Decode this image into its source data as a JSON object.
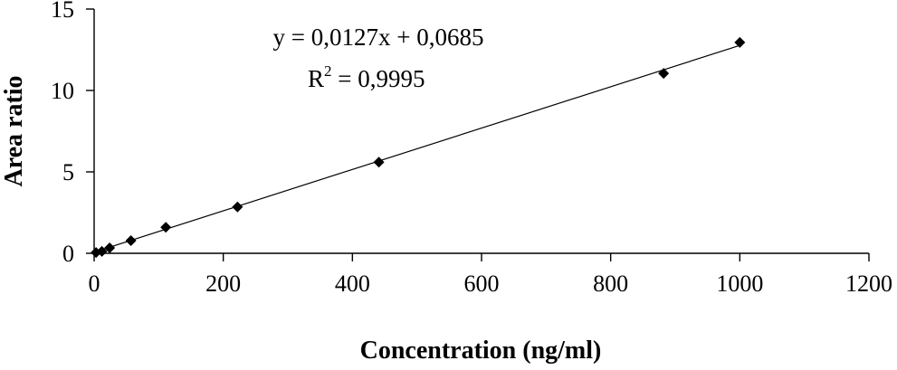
{
  "chart_data": {
    "type": "scatter",
    "xlabel": "Concentration (ng/ml)",
    "ylabel": "Area ratio",
    "xlim": [
      0,
      1200
    ],
    "ylim": [
      0,
      15
    ],
    "x_ticks": [
      0,
      200,
      400,
      600,
      800,
      1000,
      1200
    ],
    "y_ticks": [
      0,
      5,
      10,
      15
    ],
    "grid": false,
    "legend": "none",
    "series": [
      {
        "points": [
          {
            "x": 3,
            "y": 0.05
          },
          {
            "x": 12,
            "y": 0.12
          },
          {
            "x": 24,
            "y": 0.33
          },
          {
            "x": 57,
            "y": 0.78
          },
          {
            "x": 111,
            "y": 1.6
          },
          {
            "x": 222,
            "y": 2.85
          },
          {
            "x": 441,
            "y": 5.6
          },
          {
            "x": 882,
            "y": 11.05
          },
          {
            "x": 1000,
            "y": 12.95
          }
        ]
      }
    ],
    "trendline": {
      "type": "linear",
      "slope": 0.0127,
      "intercept": 0.0685,
      "x_range": [
        0,
        1000
      ]
    },
    "annotations": {
      "equation": "y = 0,0127x + 0,0685",
      "r_squared_prefix": "R",
      "r_squared_exponent": "2",
      "r_squared_value": " = 0,9995"
    }
  }
}
